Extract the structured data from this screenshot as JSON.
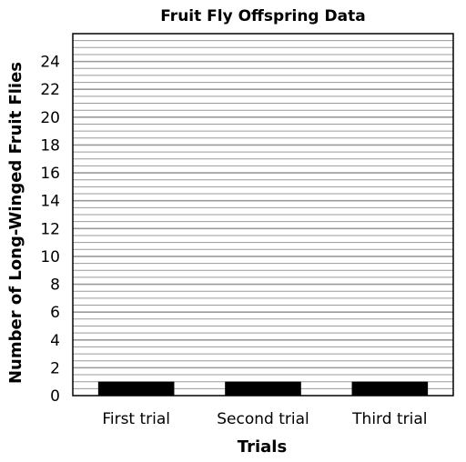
{
  "chart_data": {
    "type": "bar",
    "title": "Fruit Fly Offspring Data",
    "xlabel": "Trials",
    "ylabel": "Number of Long-Winged Fruit Flies",
    "categories": [
      "First trial",
      "Second trial",
      "Third trial"
    ],
    "values": [
      1,
      1,
      1
    ],
    "ylim": [
      0,
      26
    ],
    "yticks": [
      0,
      2,
      4,
      6,
      8,
      10,
      12,
      14,
      16,
      18,
      20,
      22,
      24
    ],
    "yticks_labels": [
      "0",
      "2",
      "4",
      "6",
      "8",
      "10",
      "12",
      "14",
      "16",
      "18",
      "20",
      "22",
      "24"
    ],
    "minor_grid_step": 0.5,
    "grid": true,
    "bar_color": "#000000",
    "grid_color": "#9a9a9a"
  }
}
